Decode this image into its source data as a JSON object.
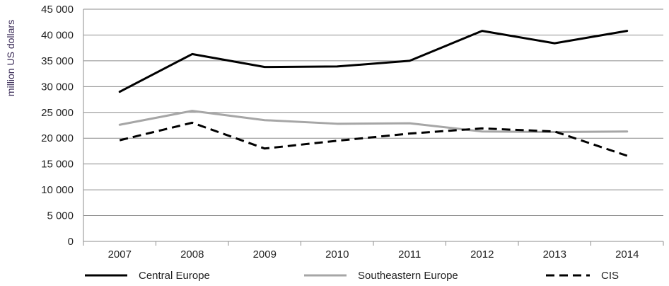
{
  "chart_data": {
    "type": "line",
    "title": "",
    "xlabel": "",
    "ylabel": "million US dollars",
    "ylim": [
      0,
      45000
    ],
    "y_ticks": [
      "0",
      "5 000",
      "10 000",
      "15 000",
      "20 000",
      "25 000",
      "30 000",
      "35 000",
      "40 000",
      "45 000"
    ],
    "categories": [
      "2007",
      "2008",
      "2009",
      "2010",
      "2011",
      "2012",
      "2013",
      "2014"
    ],
    "grid": "horizontal",
    "legend_position": "bottom",
    "series": [
      {
        "name": "Central Europe",
        "values": [
          29000,
          36300,
          33800,
          33900,
          35000,
          40800,
          38400,
          40800
        ],
        "color": "#000000",
        "style": "solid"
      },
      {
        "name": "Southeastern Europe",
        "values": [
          22600,
          25300,
          23500,
          22800,
          22900,
          21300,
          21200,
          21300
        ],
        "color": "#a6a6a6",
        "style": "solid"
      },
      {
        "name": "CIS",
        "values": [
          19600,
          23000,
          18000,
          19500,
          20900,
          21900,
          21300,
          16600
        ],
        "color": "#000000",
        "style": "dashed"
      }
    ]
  }
}
